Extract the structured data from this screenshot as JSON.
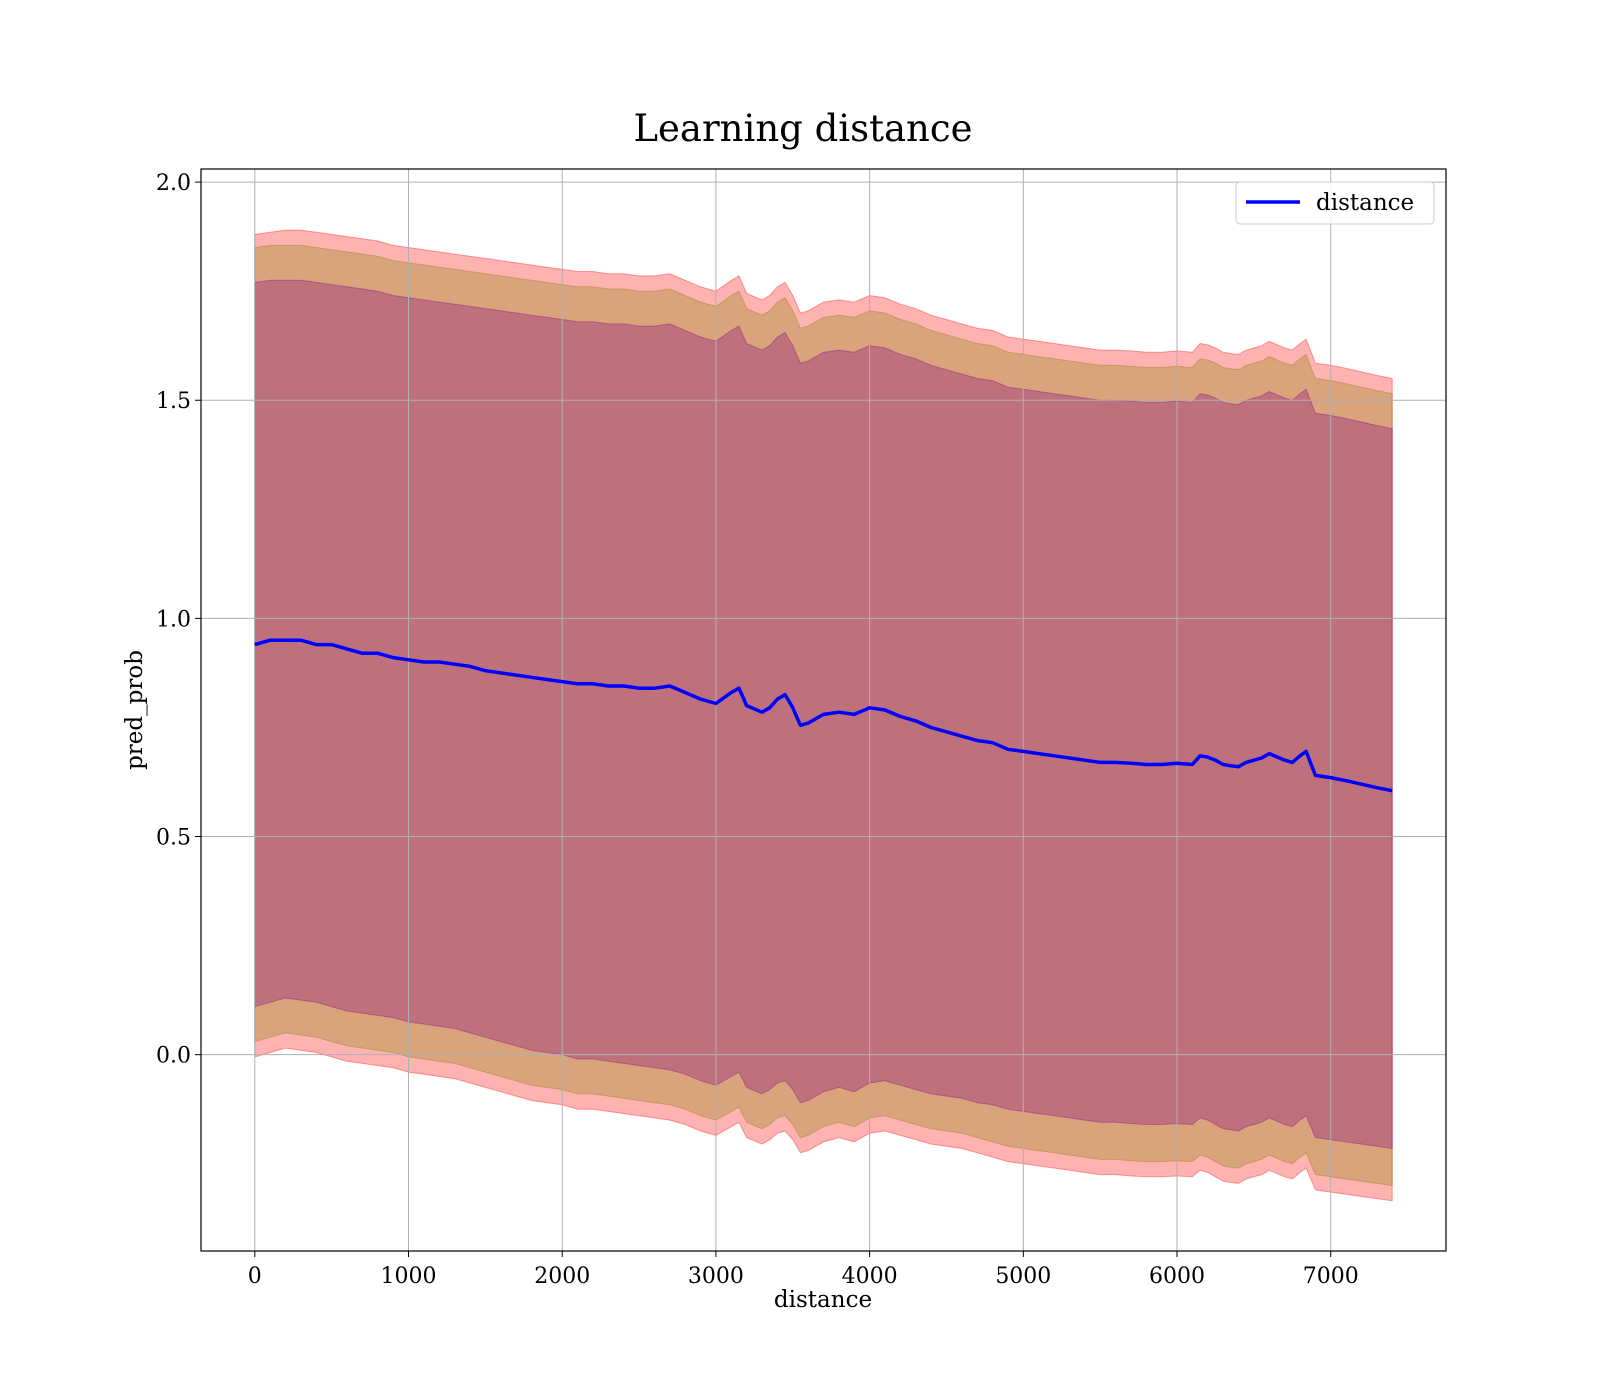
{
  "chart_data": {
    "type": "line",
    "title": "Learning distance",
    "xlabel": "distance",
    "ylabel": "pred_prob",
    "xlim": [
      -350,
      7750
    ],
    "ylim": [
      -0.45,
      2.03
    ],
    "xticks": [
      0,
      1000,
      2000,
      3000,
      4000,
      5000,
      6000,
      7000
    ],
    "xtick_labels": [
      "0",
      "1000",
      "2000",
      "3000",
      "4000",
      "5000",
      "6000",
      "7000"
    ],
    "yticks": [
      0.0,
      0.5,
      1.0,
      1.5,
      2.0
    ],
    "ytick_labels": [
      "0.0",
      "0.5",
      "1.0",
      "1.5",
      "2.0"
    ],
    "grid": true,
    "legend": {
      "position": "top-right",
      "entries": [
        "distance"
      ]
    },
    "colors": {
      "line": "#0000ff",
      "band_outer": "#ff0000",
      "band_middle": "#808000",
      "band_inner": "#800080"
    },
    "x": [
      0,
      100,
      200,
      300,
      400,
      500,
      600,
      700,
      800,
      900,
      1000,
      1100,
      1200,
      1300,
      1400,
      1500,
      1600,
      1700,
      1800,
      1900,
      2000,
      2100,
      2200,
      2300,
      2400,
      2500,
      2600,
      2700,
      2800,
      2900,
      3000,
      3100,
      3150,
      3200,
      3300,
      3350,
      3400,
      3450,
      3500,
      3550,
      3600,
      3700,
      3800,
      3900,
      4000,
      4100,
      4200,
      4300,
      4400,
      4500,
      4600,
      4700,
      4800,
      4900,
      5000,
      5100,
      5200,
      5300,
      5400,
      5500,
      5600,
      5700,
      5800,
      5900,
      6000,
      6100,
      6150,
      6200,
      6250,
      6300,
      6350,
      6400,
      6450,
      6500,
      6550,
      6600,
      6700,
      6750,
      6800,
      6840,
      6900,
      7000,
      7100,
      7200,
      7300,
      7400
    ],
    "series": [
      {
        "name": "distance",
        "values": [
          0.94,
          0.95,
          0.95,
          0.95,
          0.94,
          0.94,
          0.93,
          0.92,
          0.92,
          0.91,
          0.905,
          0.9,
          0.9,
          0.895,
          0.89,
          0.88,
          0.875,
          0.87,
          0.865,
          0.86,
          0.855,
          0.85,
          0.85,
          0.845,
          0.845,
          0.84,
          0.84,
          0.845,
          0.83,
          0.815,
          0.805,
          0.83,
          0.84,
          0.8,
          0.785,
          0.795,
          0.815,
          0.825,
          0.795,
          0.755,
          0.76,
          0.78,
          0.785,
          0.78,
          0.795,
          0.79,
          0.775,
          0.765,
          0.75,
          0.74,
          0.73,
          0.72,
          0.715,
          0.7,
          0.695,
          0.69,
          0.685,
          0.68,
          0.675,
          0.67,
          0.67,
          0.668,
          0.665,
          0.665,
          0.668,
          0.665,
          0.685,
          0.682,
          0.675,
          0.665,
          0.662,
          0.66,
          0.67,
          0.675,
          0.68,
          0.69,
          0.675,
          0.67,
          0.685,
          0.695,
          0.64,
          0.635,
          0.628,
          0.62,
          0.612,
          0.605
        ]
      }
    ],
    "bands": [
      {
        "label": "",
        "lower": [
          0.11,
          0.12,
          0.13,
          0.125,
          0.12,
          0.11,
          0.1,
          0.095,
          0.09,
          0.085,
          0.075,
          0.07,
          0.065,
          0.06,
          0.05,
          0.04,
          0.03,
          0.02,
          0.01,
          0.005,
          0.0,
          -0.01,
          -0.01,
          -0.015,
          -0.02,
          -0.025,
          -0.03,
          -0.035,
          -0.045,
          -0.06,
          -0.07,
          -0.05,
          -0.04,
          -0.075,
          -0.09,
          -0.08,
          -0.065,
          -0.06,
          -0.08,
          -0.11,
          -0.105,
          -0.085,
          -0.075,
          -0.085,
          -0.065,
          -0.06,
          -0.07,
          -0.08,
          -0.09,
          -0.095,
          -0.1,
          -0.11,
          -0.115,
          -0.125,
          -0.13,
          -0.135,
          -0.14,
          -0.145,
          -0.15,
          -0.155,
          -0.155,
          -0.158,
          -0.16,
          -0.16,
          -0.158,
          -0.16,
          -0.145,
          -0.15,
          -0.16,
          -0.17,
          -0.172,
          -0.175,
          -0.165,
          -0.16,
          -0.155,
          -0.145,
          -0.16,
          -0.165,
          -0.15,
          -0.14,
          -0.19,
          -0.195,
          -0.2,
          -0.205,
          -0.21,
          -0.215
        ],
        "upper": [
          1.77,
          1.775,
          1.775,
          1.775,
          1.77,
          1.765,
          1.76,
          1.755,
          1.75,
          1.74,
          1.735,
          1.73,
          1.725,
          1.72,
          1.715,
          1.71,
          1.705,
          1.7,
          1.695,
          1.69,
          1.685,
          1.68,
          1.68,
          1.675,
          1.675,
          1.67,
          1.67,
          1.675,
          1.66,
          1.645,
          1.635,
          1.66,
          1.67,
          1.63,
          1.615,
          1.625,
          1.645,
          1.655,
          1.625,
          1.585,
          1.59,
          1.61,
          1.615,
          1.61,
          1.625,
          1.62,
          1.605,
          1.595,
          1.58,
          1.57,
          1.56,
          1.55,
          1.545,
          1.53,
          1.525,
          1.52,
          1.515,
          1.51,
          1.505,
          1.5,
          1.5,
          1.498,
          1.495,
          1.495,
          1.498,
          1.495,
          1.515,
          1.512,
          1.505,
          1.495,
          1.492,
          1.49,
          1.5,
          1.505,
          1.51,
          1.52,
          1.505,
          1.5,
          1.515,
          1.525,
          1.47,
          1.465,
          1.458,
          1.45,
          1.442,
          1.435
        ]
      },
      {
        "label": "",
        "lower": [
          0.03,
          0.04,
          0.05,
          0.045,
          0.04,
          0.03,
          0.02,
          0.015,
          0.01,
          0.005,
          -0.005,
          -0.01,
          -0.015,
          -0.02,
          -0.03,
          -0.04,
          -0.05,
          -0.06,
          -0.07,
          -0.075,
          -0.08,
          -0.09,
          -0.09,
          -0.095,
          -0.1,
          -0.105,
          -0.11,
          -0.115,
          -0.125,
          -0.14,
          -0.15,
          -0.13,
          -0.12,
          -0.155,
          -0.17,
          -0.16,
          -0.145,
          -0.14,
          -0.16,
          -0.19,
          -0.185,
          -0.165,
          -0.155,
          -0.165,
          -0.145,
          -0.14,
          -0.15,
          -0.16,
          -0.17,
          -0.175,
          -0.18,
          -0.19,
          -0.2,
          -0.21,
          -0.215,
          -0.22,
          -0.225,
          -0.23,
          -0.235,
          -0.24,
          -0.24,
          -0.243,
          -0.245,
          -0.245,
          -0.243,
          -0.245,
          -0.23,
          -0.235,
          -0.245,
          -0.255,
          -0.258,
          -0.26,
          -0.25,
          -0.245,
          -0.24,
          -0.23,
          -0.245,
          -0.25,
          -0.235,
          -0.225,
          -0.275,
          -0.28,
          -0.285,
          -0.29,
          -0.295,
          -0.3
        ],
        "upper": [
          1.85,
          1.855,
          1.855,
          1.855,
          1.85,
          1.845,
          1.84,
          1.835,
          1.83,
          1.82,
          1.815,
          1.81,
          1.805,
          1.8,
          1.795,
          1.79,
          1.785,
          1.78,
          1.775,
          1.77,
          1.765,
          1.76,
          1.76,
          1.755,
          1.755,
          1.75,
          1.75,
          1.755,
          1.74,
          1.725,
          1.715,
          1.74,
          1.75,
          1.71,
          1.695,
          1.705,
          1.725,
          1.735,
          1.705,
          1.665,
          1.67,
          1.69,
          1.695,
          1.69,
          1.705,
          1.7,
          1.685,
          1.675,
          1.66,
          1.65,
          1.64,
          1.63,
          1.625,
          1.61,
          1.605,
          1.6,
          1.595,
          1.59,
          1.585,
          1.58,
          1.58,
          1.578,
          1.575,
          1.575,
          1.578,
          1.575,
          1.595,
          1.592,
          1.585,
          1.575,
          1.572,
          1.57,
          1.58,
          1.585,
          1.59,
          1.6,
          1.585,
          1.58,
          1.595,
          1.605,
          1.55,
          1.545,
          1.538,
          1.53,
          1.522,
          1.515
        ]
      },
      {
        "label": "",
        "lower": [
          -0.005,
          0.005,
          0.015,
          0.01,
          0.005,
          -0.005,
          -0.015,
          -0.02,
          -0.025,
          -0.03,
          -0.04,
          -0.045,
          -0.05,
          -0.055,
          -0.065,
          -0.075,
          -0.085,
          -0.095,
          -0.105,
          -0.11,
          -0.115,
          -0.125,
          -0.125,
          -0.13,
          -0.135,
          -0.14,
          -0.145,
          -0.15,
          -0.16,
          -0.175,
          -0.185,
          -0.165,
          -0.155,
          -0.19,
          -0.205,
          -0.195,
          -0.18,
          -0.175,
          -0.195,
          -0.225,
          -0.22,
          -0.2,
          -0.19,
          -0.2,
          -0.18,
          -0.175,
          -0.185,
          -0.195,
          -0.205,
          -0.21,
          -0.215,
          -0.225,
          -0.235,
          -0.245,
          -0.25,
          -0.255,
          -0.26,
          -0.265,
          -0.27,
          -0.275,
          -0.275,
          -0.278,
          -0.28,
          -0.28,
          -0.278,
          -0.28,
          -0.265,
          -0.27,
          -0.28,
          -0.29,
          -0.293,
          -0.295,
          -0.285,
          -0.28,
          -0.275,
          -0.265,
          -0.28,
          -0.285,
          -0.27,
          -0.26,
          -0.31,
          -0.315,
          -0.32,
          -0.325,
          -0.33,
          -0.335
        ],
        "upper": [
          1.88,
          1.885,
          1.89,
          1.89,
          1.885,
          1.88,
          1.875,
          1.87,
          1.865,
          1.855,
          1.85,
          1.845,
          1.84,
          1.835,
          1.83,
          1.825,
          1.82,
          1.815,
          1.81,
          1.805,
          1.8,
          1.795,
          1.795,
          1.79,
          1.79,
          1.785,
          1.785,
          1.79,
          1.775,
          1.76,
          1.75,
          1.775,
          1.785,
          1.745,
          1.73,
          1.74,
          1.76,
          1.77,
          1.74,
          1.7,
          1.705,
          1.725,
          1.73,
          1.725,
          1.74,
          1.735,
          1.72,
          1.71,
          1.695,
          1.685,
          1.675,
          1.665,
          1.66,
          1.645,
          1.64,
          1.635,
          1.63,
          1.625,
          1.62,
          1.615,
          1.615,
          1.613,
          1.61,
          1.61,
          1.613,
          1.61,
          1.63,
          1.627,
          1.62,
          1.61,
          1.607,
          1.605,
          1.615,
          1.62,
          1.625,
          1.635,
          1.62,
          1.615,
          1.63,
          1.64,
          1.585,
          1.58,
          1.573,
          1.565,
          1.557,
          1.55
        ]
      }
    ]
  }
}
